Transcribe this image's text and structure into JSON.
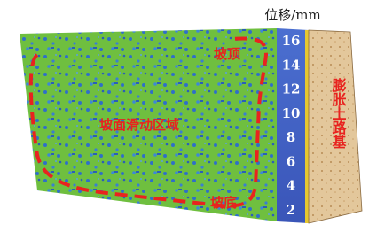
{
  "colorbar": {
    "title": "位移/mm",
    "ticks": [
      16,
      14,
      12,
      10,
      8,
      6,
      4,
      2
    ]
  },
  "labels": {
    "slope_top": "坡顶",
    "sliding_zone": "坡面滑动区域",
    "slope_toe": "坡底",
    "subgrade": "膨胀土路基"
  }
}
